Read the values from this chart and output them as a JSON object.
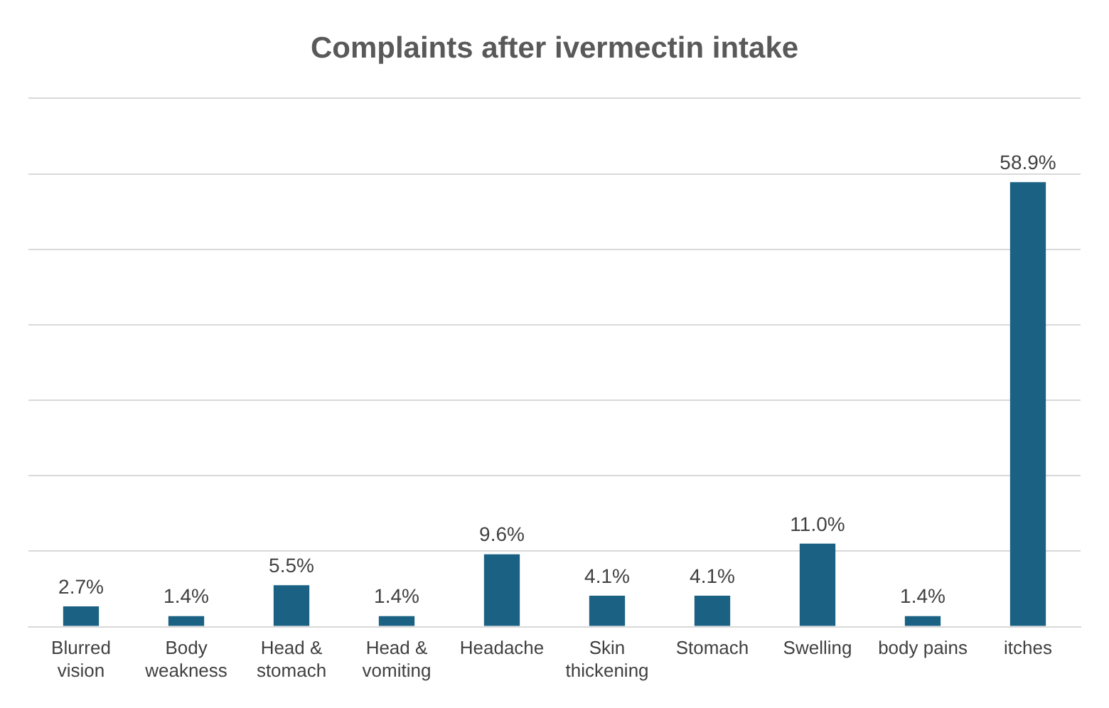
{
  "chart_data": {
    "type": "bar",
    "title": "Complaints after ivermectin intake",
    "categories": [
      "Blurred vision",
      "Body weakness",
      "Head & stomach",
      "Head & vomiting",
      "Headache",
      "Skin thickening",
      "Stomach",
      "Swelling",
      "body pains",
      "itches"
    ],
    "values": [
      2.7,
      1.4,
      5.5,
      1.4,
      9.6,
      4.1,
      4.1,
      11.0,
      1.4,
      58.9
    ],
    "value_labels": [
      "2.7%",
      "1.4%",
      "5.5%",
      "1.4%",
      "9.6%",
      "4.1%",
      "4.1%",
      "11.0%",
      "1.4%",
      "58.9%"
    ],
    "color": "#1b6183",
    "ylim": [
      0,
      70
    ],
    "yticks": [
      {
        "value": 0,
        "label": null
      },
      {
        "value": 10,
        "label": null
      },
      {
        "value": 20,
        "label": null
      },
      {
        "value": 30,
        "label": null
      },
      {
        "value": 40,
        "label": null
      },
      {
        "value": 50,
        "label": null
      },
      {
        "value": 60,
        "label": null
      },
      {
        "value": 70,
        "label": null
      }
    ],
    "grid": "y",
    "tick_labels": "x"
  }
}
